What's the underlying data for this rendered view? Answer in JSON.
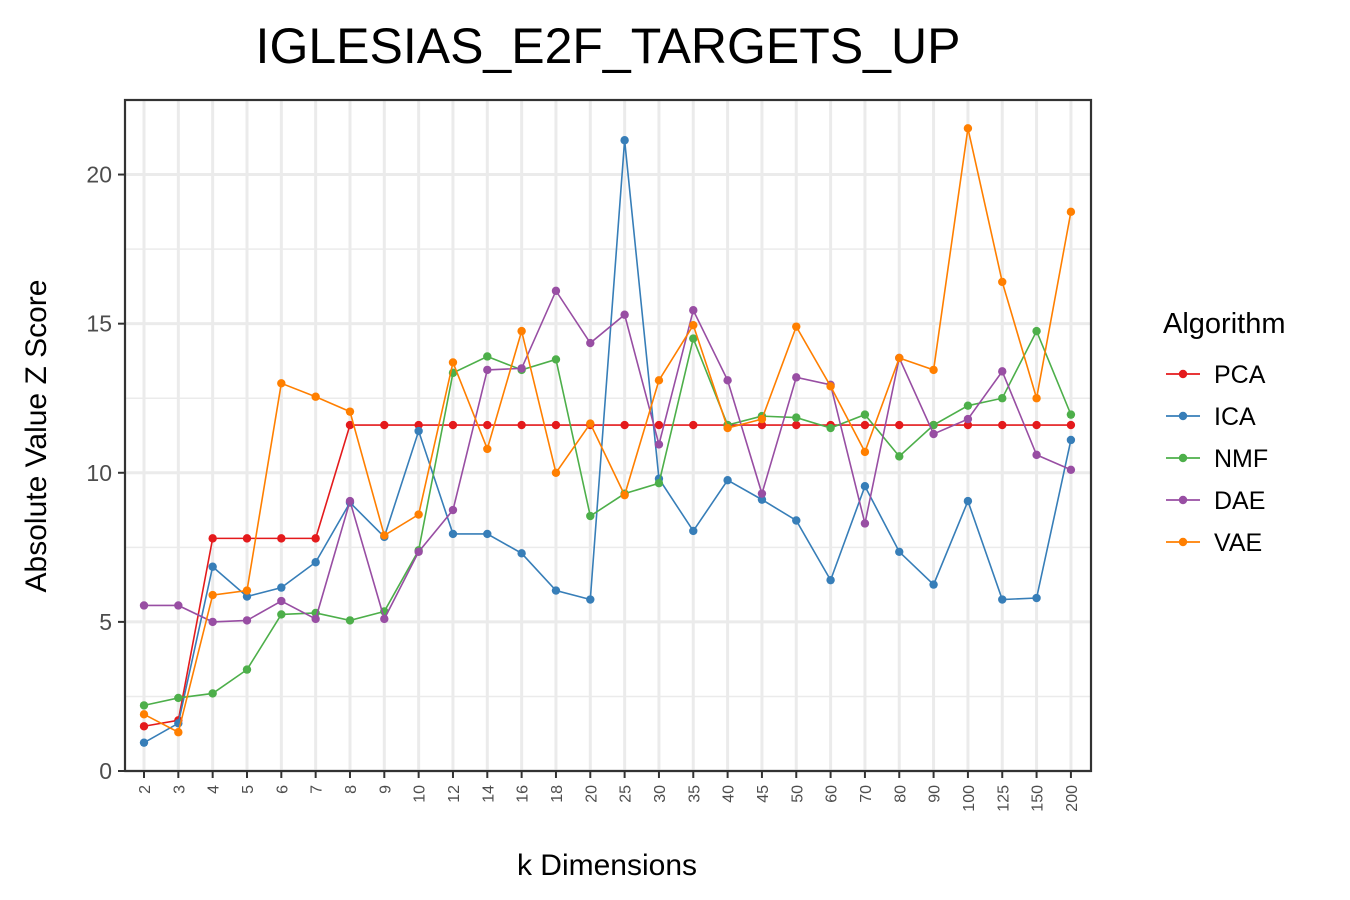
{
  "chart_data": {
    "type": "line",
    "title": "IGLESIAS_E2F_TARGETS_UP",
    "xlabel": "k Dimensions",
    "ylabel": "Absolute Value Z Score",
    "categories": [
      "2",
      "3",
      "4",
      "5",
      "6",
      "7",
      "8",
      "9",
      "10",
      "12",
      "14",
      "16",
      "18",
      "20",
      "25",
      "30",
      "35",
      "40",
      "45",
      "50",
      "60",
      "70",
      "80",
      "90",
      "100",
      "125",
      "150",
      "200"
    ],
    "ylim": [
      0,
      22.5
    ],
    "yticks": [
      0,
      5,
      10,
      15,
      20
    ],
    "grid": true,
    "legend": {
      "title": "Algorithm",
      "position": "right"
    },
    "series": [
      {
        "name": "PCA",
        "color": "#e41a1c",
        "values": [
          1.5,
          1.7,
          7.8,
          7.8,
          7.8,
          7.8,
          11.6,
          11.6,
          11.6,
          11.6,
          11.6,
          11.6,
          11.6,
          11.6,
          11.6,
          11.6,
          11.6,
          11.6,
          11.6,
          11.6,
          11.6,
          11.6,
          11.6,
          11.6,
          11.6,
          11.6,
          11.6,
          11.6
        ]
      },
      {
        "name": "ICA",
        "color": "#377eb8",
        "values": [
          0.95,
          1.6,
          6.85,
          5.85,
          6.15,
          7.0,
          9.0,
          7.85,
          11.4,
          7.95,
          7.95,
          7.3,
          6.05,
          5.75,
          21.15,
          9.8,
          8.05,
          9.75,
          9.1,
          8.4,
          6.4,
          9.55,
          7.35,
          6.25,
          9.05,
          5.75,
          5.8,
          11.1
        ]
      },
      {
        "name": "NMF",
        "color": "#4daf4a",
        "values": [
          2.2,
          2.45,
          2.6,
          3.4,
          5.25,
          5.3,
          5.05,
          5.35,
          7.4,
          13.35,
          13.9,
          13.45,
          13.8,
          8.55,
          9.3,
          9.65,
          14.5,
          11.6,
          11.9,
          11.85,
          11.5,
          11.95,
          10.55,
          11.6,
          12.25,
          12.5,
          14.75,
          11.95
        ]
      },
      {
        "name": "DAE",
        "color": "#984ea3",
        "values": [
          5.55,
          5.55,
          5.0,
          5.05,
          5.7,
          5.1,
          9.05,
          5.1,
          7.35,
          8.75,
          13.45,
          13.5,
          16.1,
          14.35,
          15.3,
          10.95,
          15.45,
          13.1,
          9.3,
          13.2,
          12.95,
          8.3,
          13.85,
          11.3,
          11.8,
          13.4,
          10.6,
          10.1
        ]
      },
      {
        "name": "VAE",
        "color": "#ff7f00",
        "values": [
          1.9,
          1.3,
          5.9,
          6.05,
          13.0,
          12.55,
          12.05,
          7.9,
          8.6,
          13.7,
          10.8,
          14.75,
          10.0,
          11.65,
          9.25,
          13.1,
          14.95,
          11.5,
          11.8,
          14.9,
          12.9,
          10.7,
          13.85,
          13.45,
          21.55,
          16.4,
          12.5,
          18.75
        ]
      }
    ]
  }
}
